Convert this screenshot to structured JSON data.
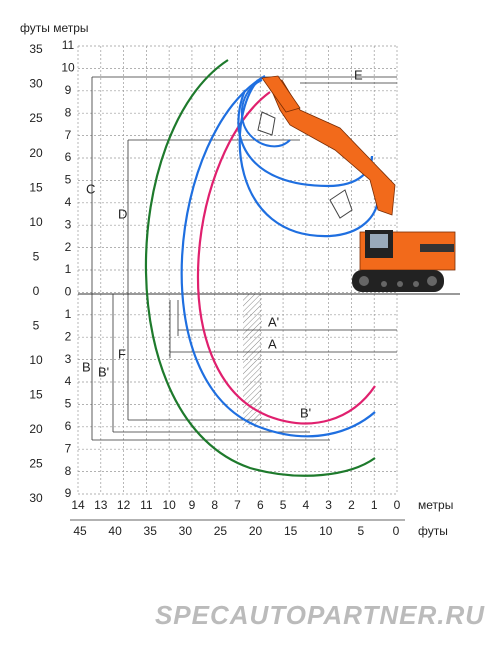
{
  "header": {
    "units": "футы метры"
  },
  "left_feet_ticks": [
    35,
    30,
    25,
    20,
    15,
    10,
    5,
    0,
    5,
    10,
    15,
    20,
    25,
    30
  ],
  "left_meter_ticks": [
    11,
    10,
    9,
    8,
    7,
    6,
    5,
    4,
    3,
    2,
    1,
    0,
    1,
    2,
    3,
    4,
    5,
    6,
    7,
    8,
    9
  ],
  "bottom_meter_ticks": [
    14,
    13,
    12,
    11,
    10,
    9,
    8,
    7,
    6,
    5,
    4,
    3,
    2,
    1,
    0
  ],
  "bottom_meter_unit": "метры",
  "bottom_feet_ticks": [
    45,
    40,
    35,
    30,
    25,
    20,
    15,
    10,
    5,
    0
  ],
  "bottom_feet_unit": "футы",
  "dimensions": {
    "A": "A",
    "A_prime": "A'",
    "B": "B",
    "B_prime": "B'",
    "B_prime_bottom": "B'",
    "C": "C",
    "D": "D",
    "E": "E",
    "F": "F"
  },
  "watermark": "SPECAUTOPARTNER.RU"
}
